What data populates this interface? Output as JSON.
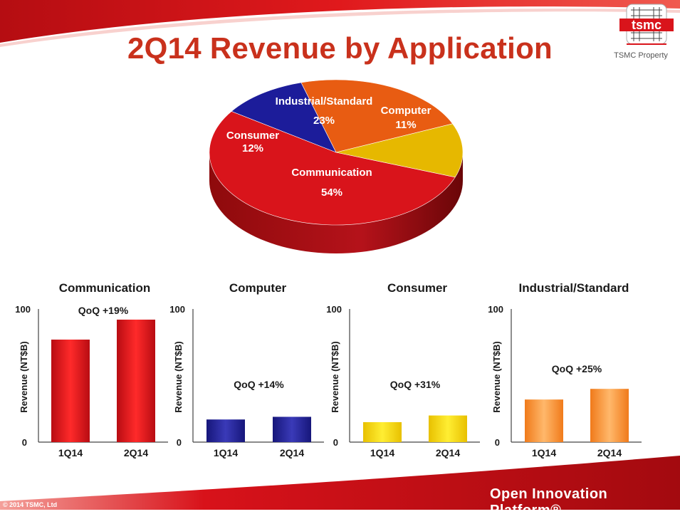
{
  "page": {
    "title": "2Q14 Revenue by Application",
    "logo_text": "tsmc",
    "property_label": "TSMC Property",
    "footer_brand": "Open Innovation Platform®",
    "copyright": "© 2014 TSMC, Ltd"
  },
  "colors": {
    "title": "#c9311c",
    "communication": "#d9141b",
    "computer": "#1c1c9a",
    "consumer": "#e6b800",
    "industrial": "#e85c12",
    "accent_red": "#c8101a"
  },
  "chart_data": [
    {
      "type": "pie",
      "title": "",
      "slices": [
        {
          "label": "Communication",
          "value": 54,
          "value_label": "54%",
          "color": "#d9141b"
        },
        {
          "label": "Computer",
          "value": 11,
          "value_label": "11%",
          "color": "#1c1c9a"
        },
        {
          "label": "Industrial/Standard",
          "value": 23,
          "value_label": "23%",
          "color": "#e85c12"
        },
        {
          "label": "Consumer",
          "value": 12,
          "value_label": "12%",
          "color": "#e6b800"
        }
      ],
      "style": "3d"
    },
    {
      "type": "bar",
      "title": "Communication",
      "categories": [
        "1Q14",
        "2Q14"
      ],
      "values": [
        77,
        92
      ],
      "ylabel": "Revenue (NT$B)",
      "ylim": [
        0,
        100
      ],
      "ytick_labels": [
        "0",
        "100"
      ],
      "annotation": "QoQ +19%",
      "color": "#d9141b"
    },
    {
      "type": "bar",
      "title": "Computer",
      "categories": [
        "1Q14",
        "2Q14"
      ],
      "values": [
        17,
        19
      ],
      "ylabel": "Revenue (NT$B)",
      "ylim": [
        0,
        100
      ],
      "ytick_labels": [
        "0",
        "100"
      ],
      "annotation": "QoQ +14%",
      "color": "#1c1c9a"
    },
    {
      "type": "bar",
      "title": "Consumer",
      "categories": [
        "1Q14",
        "2Q14"
      ],
      "values": [
        15,
        20
      ],
      "ylabel": "Revenue (NT$B)",
      "ylim": [
        0,
        100
      ],
      "ytick_labels": [
        "0",
        "100"
      ],
      "annotation": "QoQ +31%",
      "color": "#f2cc00"
    },
    {
      "type": "bar",
      "title": "Industrial/Standard",
      "categories": [
        "1Q14",
        "2Q14"
      ],
      "values": [
        32,
        40
      ],
      "ylabel": "Revenue (NT$B)",
      "ylim": [
        0,
        100
      ],
      "ytick_labels": [
        "0",
        "100"
      ],
      "annotation": "QoQ +25%",
      "color": "#f28a2c"
    }
  ]
}
